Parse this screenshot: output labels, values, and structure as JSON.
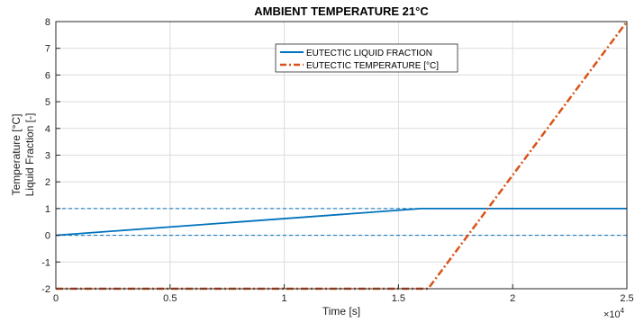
{
  "chart_data": {
    "type": "line",
    "title": "AMBIENT TEMPERATURE 21°C",
    "xlabel": "Time [s]",
    "ylabel_lines": [
      "Temperature [°C]",
      "Liquid Fraction [-]"
    ],
    "x_exponent_label": "×10",
    "x_exponent_power": "4",
    "xlim": [
      0,
      25000
    ],
    "ylim": [
      -2,
      8
    ],
    "xticks": [
      0,
      5000,
      10000,
      15000,
      20000,
      25000
    ],
    "xtick_labels": [
      "0",
      "0.5",
      "1",
      "1.5",
      "2",
      "2.5"
    ],
    "yticks": [
      -2,
      -1,
      0,
      1,
      2,
      3,
      4,
      5,
      6,
      7,
      8
    ],
    "ytick_labels": [
      "-2",
      "-1",
      "0",
      "1",
      "2",
      "3",
      "4",
      "5",
      "6",
      "7",
      "8"
    ],
    "grid": true,
    "legend_position": "top-center",
    "series": [
      {
        "name": "EUTECTIC LIQUID FRACTION",
        "color": "#0072BD",
        "style": "solid",
        "x": [
          0,
          16000,
          25000
        ],
        "y": [
          0,
          1,
          1
        ]
      },
      {
        "name": "EUTECTIC TEMPERATURE [°C]",
        "color": "#D95319",
        "style": "dashdot",
        "x": [
          0,
          16300,
          25000
        ],
        "y": [
          -2,
          -2,
          8
        ]
      }
    ],
    "reference_lines": [
      {
        "y": 1,
        "color": "#0072BD",
        "style": "dashed"
      },
      {
        "y": 0,
        "color": "#0072BD",
        "style": "dashed"
      }
    ]
  }
}
